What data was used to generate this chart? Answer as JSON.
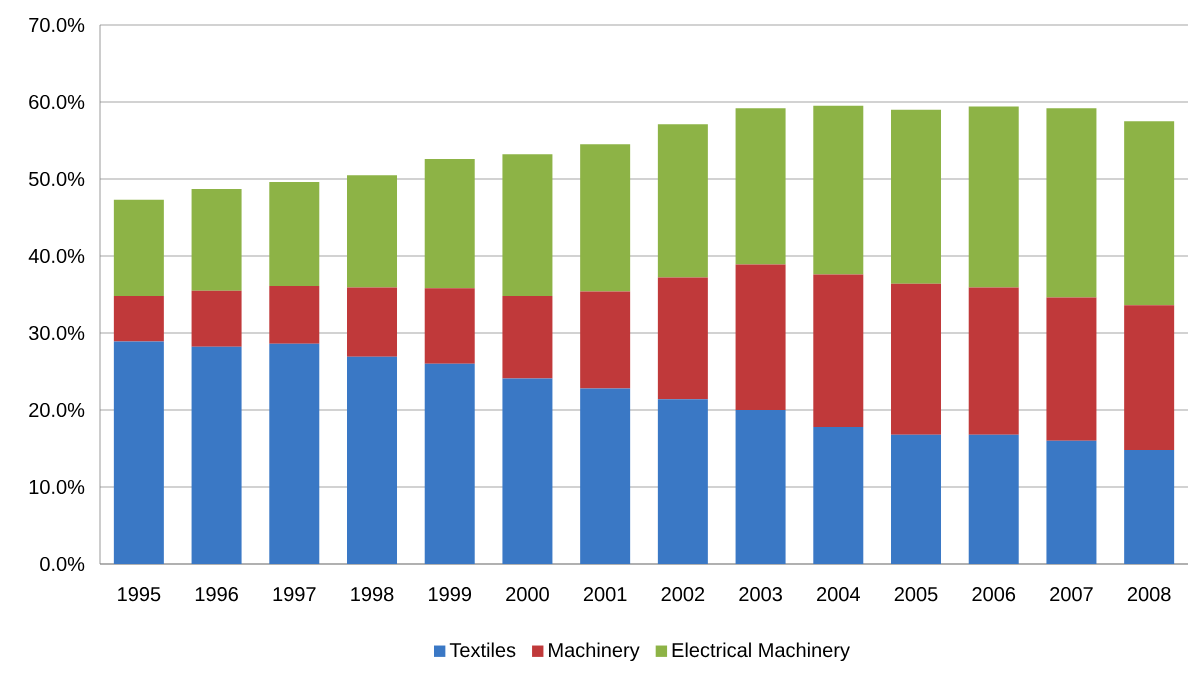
{
  "chart_data": {
    "type": "bar",
    "stacked": true,
    "categories": [
      "1995",
      "1996",
      "1997",
      "1998",
      "1999",
      "2000",
      "2001",
      "2002",
      "2003",
      "2004",
      "2005",
      "2006",
      "2007",
      "2008"
    ],
    "series": [
      {
        "name": "Textiles",
        "color": "#3a78c5",
        "values": [
          28.9,
          28.2,
          28.6,
          26.9,
          26.0,
          24.1,
          22.8,
          21.4,
          20.0,
          17.8,
          16.8,
          16.8,
          16.0,
          14.8
        ]
      },
      {
        "name": "Machinery",
        "color": "#c0393a",
        "values": [
          5.9,
          7.3,
          7.5,
          9.0,
          9.8,
          10.7,
          12.6,
          15.8,
          18.9,
          19.8,
          19.6,
          19.1,
          18.6,
          18.8
        ]
      },
      {
        "name": "Electrical Machinery",
        "color": "#8db346",
        "values": [
          12.5,
          13.2,
          13.5,
          14.6,
          16.8,
          18.4,
          19.1,
          19.9,
          20.3,
          21.9,
          22.6,
          23.5,
          24.6,
          23.9
        ]
      }
    ],
    "ylim": [
      0,
      70
    ],
    "yticks": [
      {
        "value": 0,
        "label": "0.0%"
      },
      {
        "value": 10,
        "label": "10.0%"
      },
      {
        "value": 20,
        "label": "20.0%"
      },
      {
        "value": 30,
        "label": "30.0%"
      },
      {
        "value": 40,
        "label": "40.0%"
      },
      {
        "value": 50,
        "label": "50.0%"
      },
      {
        "value": 60,
        "label": "60.0%"
      },
      {
        "value": 70,
        "label": "70.0%"
      }
    ],
    "grid": "y",
    "legend": "bottom"
  }
}
